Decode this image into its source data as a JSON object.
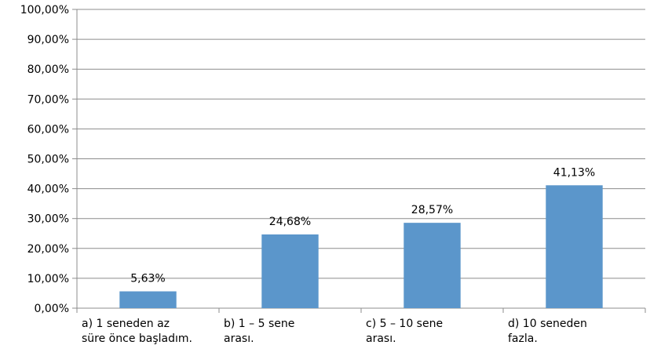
{
  "chart_data": {
    "type": "bar",
    "title": "",
    "xlabel": "",
    "ylabel": "",
    "ylim": [
      0,
      100
    ],
    "y_ticks": [
      "0,00%",
      "10,00%",
      "20,00%",
      "30,00%",
      "40,00%",
      "50,00%",
      "60,00%",
      "70,00%",
      "80,00%",
      "90,00%",
      "100,00%"
    ],
    "categories": [
      "a)     1 seneden az süre önce başladım.",
      "b)     1 – 5 sene arası.",
      "c)     5 – 10 sene arası.",
      "d)     10 seneden fazla."
    ],
    "category_lines": [
      [
        "a)      1 seneden az",
        "süre önce başladım."
      ],
      [
        "b)       1 – 5 sene",
        "arası."
      ],
      [
        "c)       5 – 10 sene",
        "arası."
      ],
      [
        "d)       10 seneden",
        "fazla."
      ]
    ],
    "values": [
      5.63,
      24.68,
      28.57,
      41.13
    ],
    "data_labels": [
      "5,63%",
      "24,68%",
      "28,57%",
      "41,13%"
    ],
    "grid": true,
    "legend": "none",
    "colors": {
      "bar": "#5b96cb",
      "grid": "#8c8c8c",
      "axis": "#8c8c8c"
    }
  }
}
